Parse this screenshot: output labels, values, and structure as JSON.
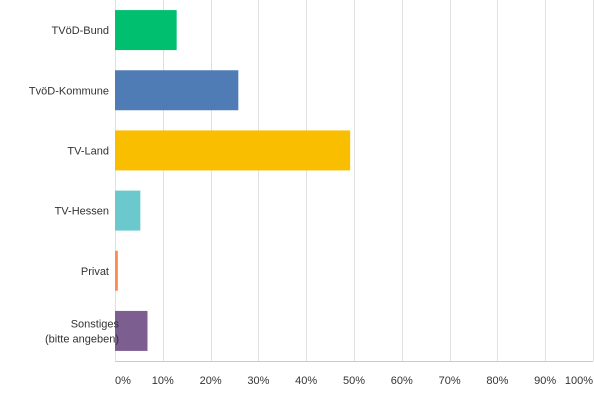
{
  "chart_data": {
    "type": "bar",
    "orientation": "horizontal",
    "title": "",
    "xlabel": "",
    "ylabel": "",
    "categories": [
      [
        "TVöD-Bund"
      ],
      [
        "TvöD-Kommune"
      ],
      [
        "TV-Land"
      ],
      [
        "TV-Hessen"
      ],
      [
        "Privat"
      ],
      [
        "Sonstiges",
        "(bitte angeben)"
      ]
    ],
    "values": [
      12.9,
      25.8,
      49.2,
      5.3,
      0.6,
      6.8
    ],
    "colors": [
      "#00bf6f",
      "#507cb6",
      "#f9be00",
      "#6bc8cd",
      "#ff8b4f",
      "#7d5e90"
    ],
    "xlim": [
      0,
      100
    ],
    "ticks": [
      "0%",
      "10%",
      "20%",
      "30%",
      "40%",
      "50%",
      "60%",
      "70%",
      "80%",
      "90%",
      "100%"
    ],
    "tick_values": [
      0,
      10,
      20,
      30,
      40,
      50,
      60,
      70,
      80,
      90,
      100
    ],
    "grid": true,
    "gridline_color": "#e0e0e0"
  }
}
